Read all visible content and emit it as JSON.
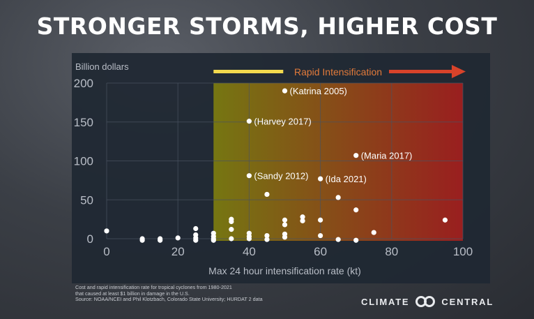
{
  "title": "STRONGER STORMS, HIGHER COST",
  "footnote": {
    "line1": "Cost and rapid intensification rate for tropical cyclones from 1980-2021",
    "line2": "that caused at least $1 billion in damage in the U.S.",
    "line3": "Source: NOAA/NCEI and Phil Klotzbach, Colorado State University; HURDAT 2 data"
  },
  "logo": {
    "left": "CLIMATE",
    "right": "CENTRAL"
  },
  "chart_data": {
    "type": "scatter",
    "ylabel": "Billion dollars",
    "xlabel": "Max 24 hour intensification rate (kt)",
    "xlim": [
      0,
      100
    ],
    "ylim": [
      0,
      200
    ],
    "xticks": [
      0,
      20,
      40,
      60,
      80,
      100
    ],
    "yticks": [
      0,
      50,
      100,
      150,
      200
    ],
    "grid": true,
    "region": {
      "label": "Rapid Intensification",
      "x_start": 30,
      "x_end": 100,
      "color_start": "#7a7a10",
      "color_end": "#a01e1e"
    },
    "annotated_points": [
      {
        "label": "Katrina 2005",
        "x": 50,
        "y": 190
      },
      {
        "label": "Harvey 2017",
        "x": 40,
        "y": 151
      },
      {
        "label": "Maria 2017",
        "x": 70,
        "y": 107
      },
      {
        "label": "Sandy 2012",
        "x": 40,
        "y": 81
      },
      {
        "label": "Ida 2021",
        "x": 60,
        "y": 77
      }
    ],
    "points": [
      {
        "x": 0,
        "y": 10
      },
      {
        "x": 10,
        "y": 0
      },
      {
        "x": 10,
        "y": -2
      },
      {
        "x": 15,
        "y": 0
      },
      {
        "x": 15,
        "y": -2
      },
      {
        "x": 20,
        "y": 1
      },
      {
        "x": 25,
        "y": 13
      },
      {
        "x": 25,
        "y": 5
      },
      {
        "x": 25,
        "y": 1
      },
      {
        "x": 25,
        "y": -2
      },
      {
        "x": 30,
        "y": 7
      },
      {
        "x": 30,
        "y": 3
      },
      {
        "x": 30,
        "y": 0
      },
      {
        "x": 30,
        "y": -2
      },
      {
        "x": 35,
        "y": 25
      },
      {
        "x": 35,
        "y": 22
      },
      {
        "x": 35,
        "y": 12
      },
      {
        "x": 35,
        "y": 0
      },
      {
        "x": 40,
        "y": 7
      },
      {
        "x": 40,
        "y": 3
      },
      {
        "x": 40,
        "y": 0
      },
      {
        "x": 45,
        "y": 57
      },
      {
        "x": 45,
        "y": 4
      },
      {
        "x": 45,
        "y": -1
      },
      {
        "x": 50,
        "y": 24
      },
      {
        "x": 50,
        "y": 18
      },
      {
        "x": 50,
        "y": 6
      },
      {
        "x": 50,
        "y": 2
      },
      {
        "x": 55,
        "y": 28
      },
      {
        "x": 55,
        "y": 23
      },
      {
        "x": 60,
        "y": 24
      },
      {
        "x": 60,
        "y": 4
      },
      {
        "x": 65,
        "y": 53
      },
      {
        "x": 65,
        "y": -1
      },
      {
        "x": 70,
        "y": 37
      },
      {
        "x": 70,
        "y": -2
      },
      {
        "x": 75,
        "y": 8
      },
      {
        "x": 95,
        "y": 24
      }
    ]
  },
  "colors": {
    "panel_bg": "#1f2833",
    "grid": "#4a5361",
    "tick_text": "#b9bec7",
    "arrow_start": "#f2d94e",
    "arrow_end": "#d8432a",
    "region_label": "#e27a3a",
    "point": "#ffffff"
  }
}
